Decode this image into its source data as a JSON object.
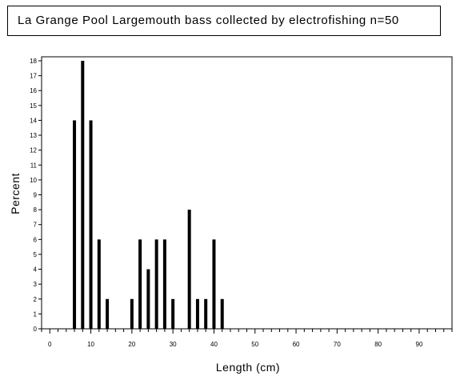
{
  "chart_data": {
    "type": "bar",
    "title": "La Grange Pool Largemouth bass collected by electrofishing n=50",
    "xlabel": "Length (cm)",
    "ylabel": "Percent",
    "xlim": [
      -2,
      98
    ],
    "ylim": [
      0,
      18
    ],
    "x_major_ticks": [
      0,
      10,
      20,
      30,
      40,
      50,
      60,
      70,
      80,
      90
    ],
    "x_minor_step": 2,
    "y_ticks": [
      0,
      1,
      2,
      3,
      4,
      5,
      6,
      7,
      8,
      9,
      10,
      11,
      12,
      13,
      14,
      15,
      16,
      17,
      18
    ],
    "grid": false,
    "legend": false,
    "bars": [
      {
        "x": 6,
        "value": 14
      },
      {
        "x": 8,
        "value": 18
      },
      {
        "x": 10,
        "value": 14
      },
      {
        "x": 12,
        "value": 6
      },
      {
        "x": 14,
        "value": 2
      },
      {
        "x": 20,
        "value": 2
      },
      {
        "x": 22,
        "value": 6
      },
      {
        "x": 24,
        "value": 4
      },
      {
        "x": 26,
        "value": 6
      },
      {
        "x": 28,
        "value": 6
      },
      {
        "x": 30,
        "value": 2
      },
      {
        "x": 34,
        "value": 8
      },
      {
        "x": 36,
        "value": 2
      },
      {
        "x": 38,
        "value": 2
      },
      {
        "x": 40,
        "value": 6
      },
      {
        "x": 42,
        "value": 2
      }
    ],
    "bar_color": "#000000"
  }
}
